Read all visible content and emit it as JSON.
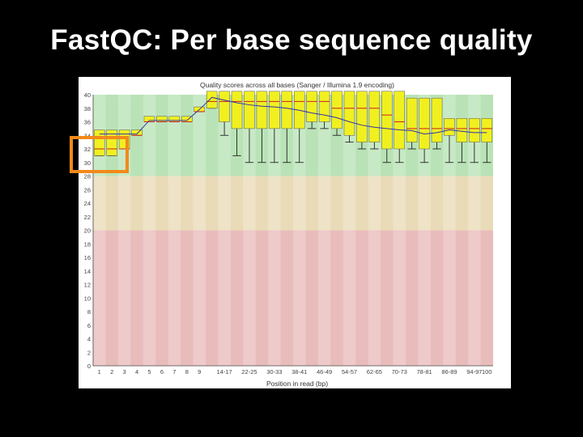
{
  "slide": {
    "title": "FastQC: Per base sequence quality"
  },
  "colors": {
    "good_zone": "#b9e3b6",
    "warn_zone": "#eadbb8",
    "bad_zone": "#e9bcbc",
    "box_fill": "#f0f020",
    "whisker": "#222222",
    "median": "#cc2222",
    "mean_line": "#3333aa",
    "highlight": "#f28a1a"
  },
  "chart_data": {
    "type": "box",
    "title": "Quality scores across all bases (Sanger / Illumina 1.9 encoding)",
    "xlabel": "Position in read (bp)",
    "ylabel": "",
    "ylim": [
      0,
      40
    ],
    "yticks": [
      "0",
      "2",
      "4",
      "6",
      "8",
      "10",
      "12",
      "14",
      "16",
      "18",
      "20",
      "22",
      "24",
      "26",
      "28",
      "30",
      "32",
      "34",
      "36",
      "38",
      "40"
    ],
    "zones": [
      {
        "name": "good",
        "from": 28,
        "to": 40
      },
      {
        "name": "warn",
        "from": 20,
        "to": 28
      },
      {
        "name": "bad",
        "from": 0,
        "to": 20
      }
    ],
    "categories": [
      "1",
      "2",
      "3",
      "4",
      "5",
      "6",
      "7",
      "8",
      "9",
      "10-13",
      "14-17",
      "18-21",
      "22-25",
      "26-29",
      "30-33",
      "34-37",
      "38-41",
      "42-45",
      "46-49",
      "50-53",
      "54-57",
      "58-61",
      "62-65",
      "66-69",
      "70-73",
      "74-77",
      "78-81",
      "82-85",
      "86-89",
      "90-93",
      "94-97",
      "98-101"
    ],
    "xtick_labels": [
      "1",
      "2",
      "3",
      "4",
      "5",
      "6",
      "7",
      "8",
      "9",
      "14-17",
      "22-25",
      "30-33",
      "38-41",
      "46-49",
      "54-57",
      "62-65",
      "70-73",
      "78-81",
      "86-89",
      "94-97",
      "100"
    ],
    "series": [
      {
        "name": "",
        "box": [
          [
            31,
            34.2,
            32,
            34.8,
            31
          ],
          [
            31,
            34.2,
            32,
            34.8,
            31
          ],
          [
            32,
            34.2,
            32,
            34.8,
            32
          ],
          [
            34,
            34.2,
            34,
            34.8,
            34
          ],
          [
            36,
            36.2,
            36,
            36.8,
            36
          ],
          [
            36,
            36.2,
            36,
            36.8,
            36
          ],
          [
            36,
            36.2,
            36,
            36.8,
            36
          ],
          [
            36,
            36.2,
            36,
            36.8,
            36
          ],
          [
            37.5,
            37.8,
            37.5,
            38.2,
            37.5
          ],
          [
            38,
            39.6,
            39,
            40.5,
            38
          ],
          [
            36,
            39.2,
            39,
            40.5,
            34
          ],
          [
            35,
            38.8,
            39,
            40.5,
            31
          ],
          [
            35,
            38.5,
            39,
            40.5,
            30
          ],
          [
            35,
            38.3,
            39,
            40.5,
            30
          ],
          [
            35,
            38.2,
            39,
            40.5,
            30
          ],
          [
            35,
            38.0,
            39,
            40.5,
            30
          ],
          [
            35,
            37.7,
            39,
            40.5,
            30
          ],
          [
            36,
            37.3,
            39,
            40.5,
            35
          ],
          [
            36,
            37.0,
            39,
            40.5,
            35
          ],
          [
            35,
            36.6,
            38,
            40.5,
            34
          ],
          [
            34,
            36.0,
            38,
            40.5,
            33
          ],
          [
            33,
            35.5,
            38,
            40.5,
            32
          ],
          [
            33,
            35.2,
            38,
            40.5,
            32
          ],
          [
            32,
            35.0,
            37,
            40.5,
            30
          ],
          [
            32,
            34.8,
            36,
            40.5,
            30
          ],
          [
            33,
            34.7,
            35,
            39.5,
            32
          ],
          [
            32,
            34.2,
            35,
            39.5,
            30
          ],
          [
            33,
            34.4,
            35,
            39.5,
            32
          ],
          [
            34,
            34.8,
            35,
            36.5,
            30
          ],
          [
            33,
            34.6,
            35,
            36.5,
            30
          ],
          [
            33,
            34.4,
            35,
            36.5,
            30
          ],
          [
            33,
            34.4,
            35,
            36.5,
            30
          ]
        ],
        "box_order": [
          "q1",
          "mean",
          "median",
          "q3",
          "whisker_low"
        ]
      }
    ]
  }
}
